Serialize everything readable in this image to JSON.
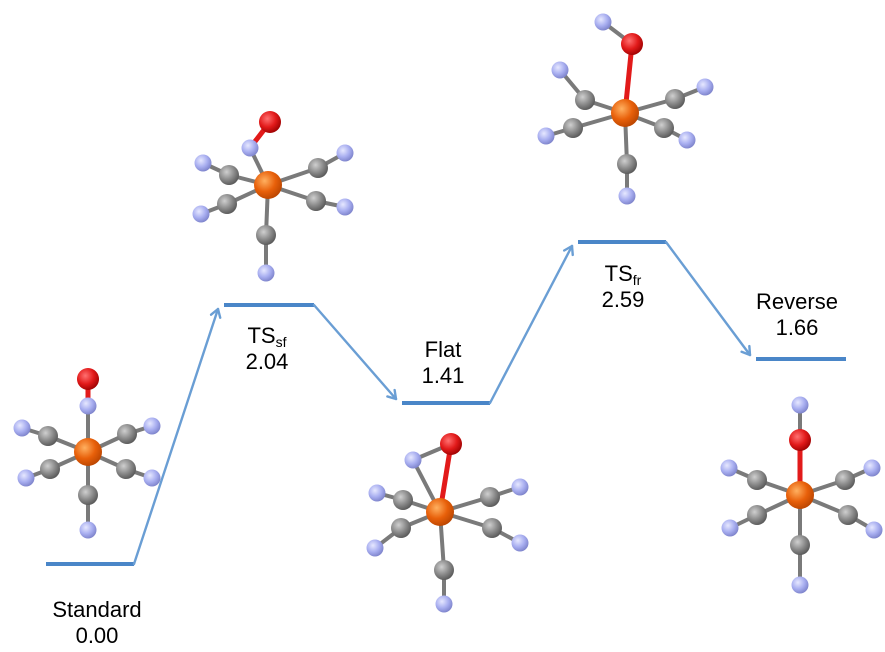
{
  "colors": {
    "level": "#4a86c8",
    "connector": "#6a9ed4",
    "iron": "#e8600a",
    "carbon": "#8a8a8a",
    "nitrogen": "#a8aef0",
    "oxygen": "#e21a1a",
    "bond": "#7a7a7a"
  },
  "states": [
    {
      "main": "Standard",
      "sub": "",
      "value": "0.00",
      "energy": 0.0
    },
    {
      "main": "TS",
      "sub": "sf",
      "value": "2.04",
      "energy": 2.04
    },
    {
      "main": "Flat",
      "sub": "",
      "value": "1.41",
      "energy": 1.41
    },
    {
      "main": "TS",
      "sub": "fr",
      "value": "2.59",
      "energy": 2.59
    },
    {
      "main": "Reverse",
      "sub": "",
      "value": "1.66",
      "energy": 1.66
    }
  ],
  "molecules": [
    {
      "state": "Standard",
      "no_geometry": "linear, N-bound"
    },
    {
      "state": "TSsf",
      "no_geometry": "bent, N-bound"
    },
    {
      "state": "Flat",
      "no_geometry": "side-on"
    },
    {
      "state": "TSfr",
      "no_geometry": "bent, O-bound"
    },
    {
      "state": "Reverse",
      "no_geometry": "linear, O-bound"
    }
  ],
  "icons": [
    "iron-atom-icon",
    "carbon-atom-icon",
    "nitrogen-atom-icon",
    "oxygen-atom-icon"
  ]
}
